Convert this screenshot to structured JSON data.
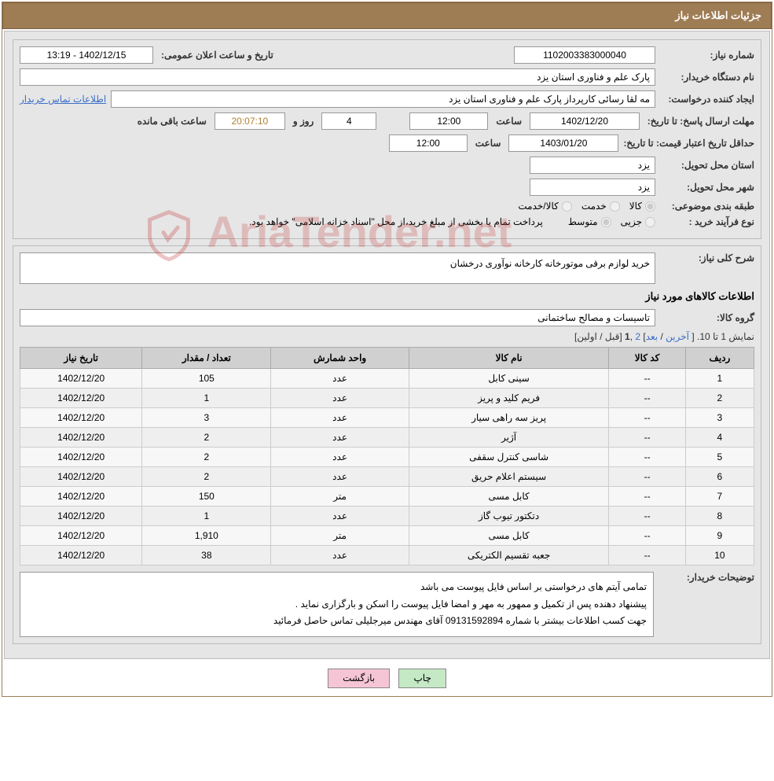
{
  "header": {
    "title": "جزئیات اطلاعات نیاز"
  },
  "info": {
    "need_number_label": "شماره نیاز:",
    "need_number": "1102003383000040",
    "announce_label": "تاریخ و ساعت اعلان عمومی:",
    "announce_value": "1402/12/15 - 13:19",
    "buyer_org_label": "نام دستگاه خریدار:",
    "buyer_org": "پارک علم و فناوری استان یزد",
    "requester_label": "ایجاد کننده درخواست:",
    "requester": "مه لقا رسائی  کارپرداز پارک علم و فناوری استان یزد",
    "contact_link": "اطلاعات تماس خریدار",
    "deadline_label": "مهلت ارسال پاسخ:  تا تاریخ:",
    "deadline_date": "1402/12/20",
    "hour_label": "ساعت",
    "deadline_hour": "12:00",
    "days_value": "4",
    "days_label": "روز و",
    "countdown": "20:07:10",
    "remaining_label": "ساعت باقی مانده",
    "validity_label": "حداقل تاریخ اعتبار قیمت: تا تاریخ:",
    "validity_date": "1403/01/20",
    "validity_hour": "12:00",
    "province_label": "استان محل تحویل:",
    "province": "یزد",
    "city_label": "شهر محل تحویل:",
    "city": "یزد",
    "category_label": "طبقه بندی موضوعی:",
    "cat_goods": "کالا",
    "cat_service": "خدمت",
    "cat_both": "کالا/خدمت",
    "process_label": "نوع فرآیند خرید :",
    "proc_partial": "جزیی",
    "proc_medium": "متوسط",
    "payment_note": "پرداخت تمام یا بخشی از مبلغ خرید،از محل \"اسناد خزانه اسلامی\" خواهد بود."
  },
  "need": {
    "desc_label": "شرح کلی نیاز:",
    "desc": "خرید لوازم برقی موتورخانه کارخانه نوآوری درخشان",
    "items_title": "اطلاعات کالاهای مورد نیاز",
    "group_label": "گروه کالا:",
    "group": "تاسیسات و مصالح ساختمانی"
  },
  "pager": {
    "text_prefix": "نمایش 1 تا 10. [ ",
    "last": "آخرین",
    "sep1": " / ",
    "next": "بعد",
    "sep2": "] ",
    "page2": "2",
    "comma": " ,",
    "page1": "1",
    "suffix": " [قبل / اولین]"
  },
  "table": {
    "columns": [
      "ردیف",
      "کد کالا",
      "نام کالا",
      "واحد شمارش",
      "تعداد / مقدار",
      "تاریخ نیاز"
    ],
    "rows": [
      [
        "1",
        "--",
        "سینی کابل",
        "عدد",
        "105",
        "1402/12/20"
      ],
      [
        "2",
        "--",
        "فریم کلید و پریز",
        "عدد",
        "1",
        "1402/12/20"
      ],
      [
        "3",
        "--",
        "پریز سه راهی سیار",
        "عدد",
        "3",
        "1402/12/20"
      ],
      [
        "4",
        "--",
        "آژیر",
        "عدد",
        "2",
        "1402/12/20"
      ],
      [
        "5",
        "--",
        "شاسی کنترل سقفی",
        "عدد",
        "2",
        "1402/12/20"
      ],
      [
        "6",
        "--",
        "سیستم اعلام حریق",
        "عدد",
        "2",
        "1402/12/20"
      ],
      [
        "7",
        "--",
        "کابل مسی",
        "متر",
        "150",
        "1402/12/20"
      ],
      [
        "8",
        "--",
        "دتکتور تیوب گاز",
        "عدد",
        "1",
        "1402/12/20"
      ],
      [
        "9",
        "--",
        "کابل مسی",
        "متر",
        "1,910",
        "1402/12/20"
      ],
      [
        "10",
        "--",
        "جعبه تقسیم الکتریکی",
        "عدد",
        "38",
        "1402/12/20"
      ]
    ]
  },
  "notes": {
    "label": "توضیحات خریدار:",
    "line1": "تمامی آیتم های درخواستی بر اساس فایل پیوست می باشد",
    "line2": "پیشنهاد دهنده پس از تکمیل و ممهور به مهر و امضا فایل پیوست را اسکن و بارگزاری نماید .",
    "line3": "جهت کسب اطلاعات بیشتر با شماره  09131592894 آقای مهندس میرجلیلی تماس حاصل فرمائید"
  },
  "buttons": {
    "print": "چاپ",
    "back": "بازگشت"
  },
  "watermark": {
    "text": "AriaTender.net"
  },
  "colors": {
    "header_bg": "#9e7c54",
    "panel_bg": "#e6e6e6",
    "link": "#3a6fc9",
    "btn_print": "#c5e8c5",
    "btn_back": "#f5c5d5"
  }
}
